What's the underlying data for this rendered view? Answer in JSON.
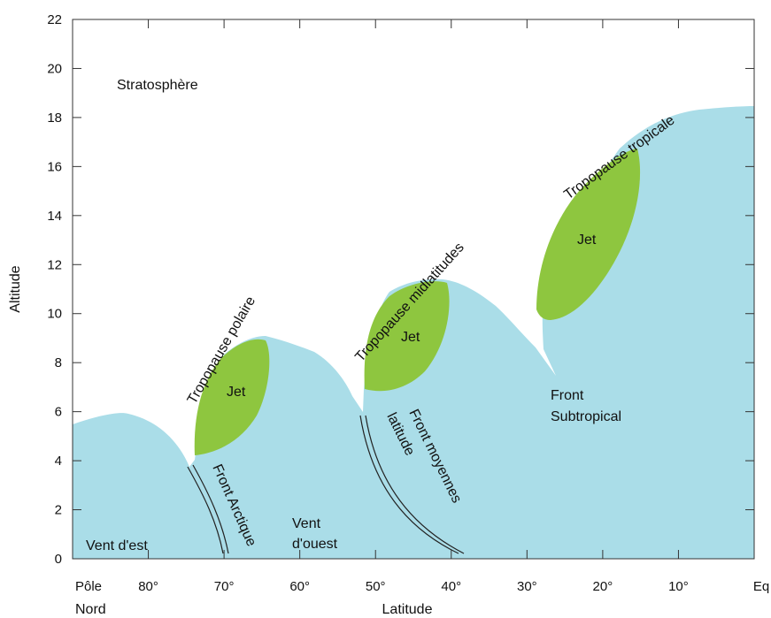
{
  "y_axis": {
    "label": "Altitude",
    "ticks": [
      "0",
      "2",
      "4",
      "6",
      "8",
      "10",
      "12",
      "14",
      "16",
      "18",
      "20",
      "22"
    ]
  },
  "x_axis": {
    "label": "Latitude",
    "ticks": [
      "Pôle",
      "80°",
      "70°",
      "60°",
      "50°",
      "40°",
      "30°",
      "20°",
      "10°",
      "Eq"
    ],
    "pole_sub": "Nord"
  },
  "labels": {
    "stratosphere": "Stratosphère",
    "tropopause_polaire": "Tropopause polaire",
    "tropopause_mid": "Tropopause midlatitudes",
    "tropopause_tropicale": "Tropopause tropicale",
    "jet": "Jet",
    "front_arctique": "Front Arctique",
    "front_moyennes_1": "Front moyennes",
    "front_moyennes_2": "latitude",
    "front_subtropical_1": "Front",
    "front_subtropical_2": "Subtropical",
    "vent_est": "Vent d'est",
    "vent_ouest_1": "Vent",
    "vent_ouest_2": "d'ouest"
  },
  "colors": {
    "troposphere": "#aadde8",
    "jet": "#8ec63f",
    "frame": "#333333",
    "front_line": "#222222"
  }
}
